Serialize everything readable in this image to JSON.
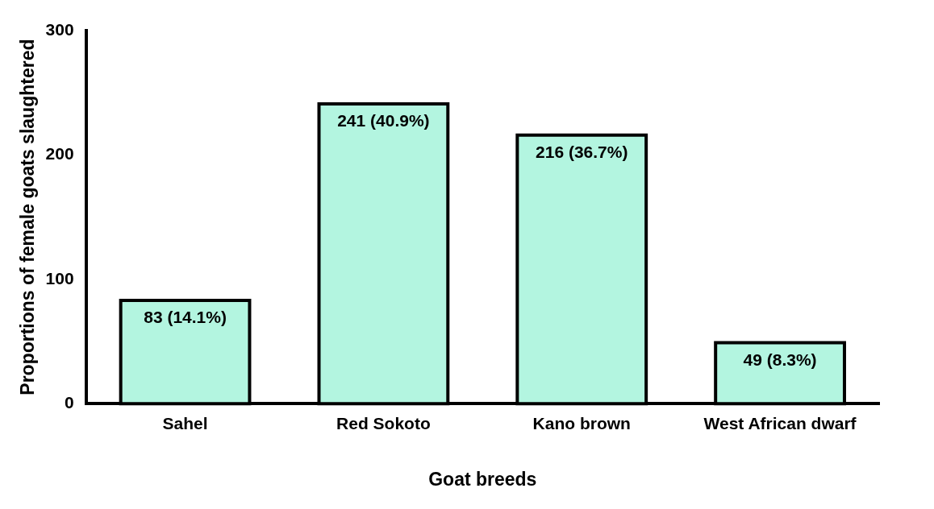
{
  "chart_data": {
    "type": "bar",
    "xlabel": "Goat breeds",
    "ylabel": "Proportions of female goats slaughtered",
    "categories": [
      "Sahel",
      "Red Sokoto",
      "Kano brown",
      "West African dwarf"
    ],
    "values": [
      83,
      241,
      216,
      49
    ],
    "value_labels": [
      "83 (14.1%)",
      "241 (40.9%)",
      "216 (36.7%)",
      "49 (8.3%)"
    ],
    "color": "#b3f5e0",
    "ylim": [
      0,
      300
    ],
    "yticks": [
      0,
      100,
      200,
      300
    ],
    "grid": false,
    "legend": false
  }
}
